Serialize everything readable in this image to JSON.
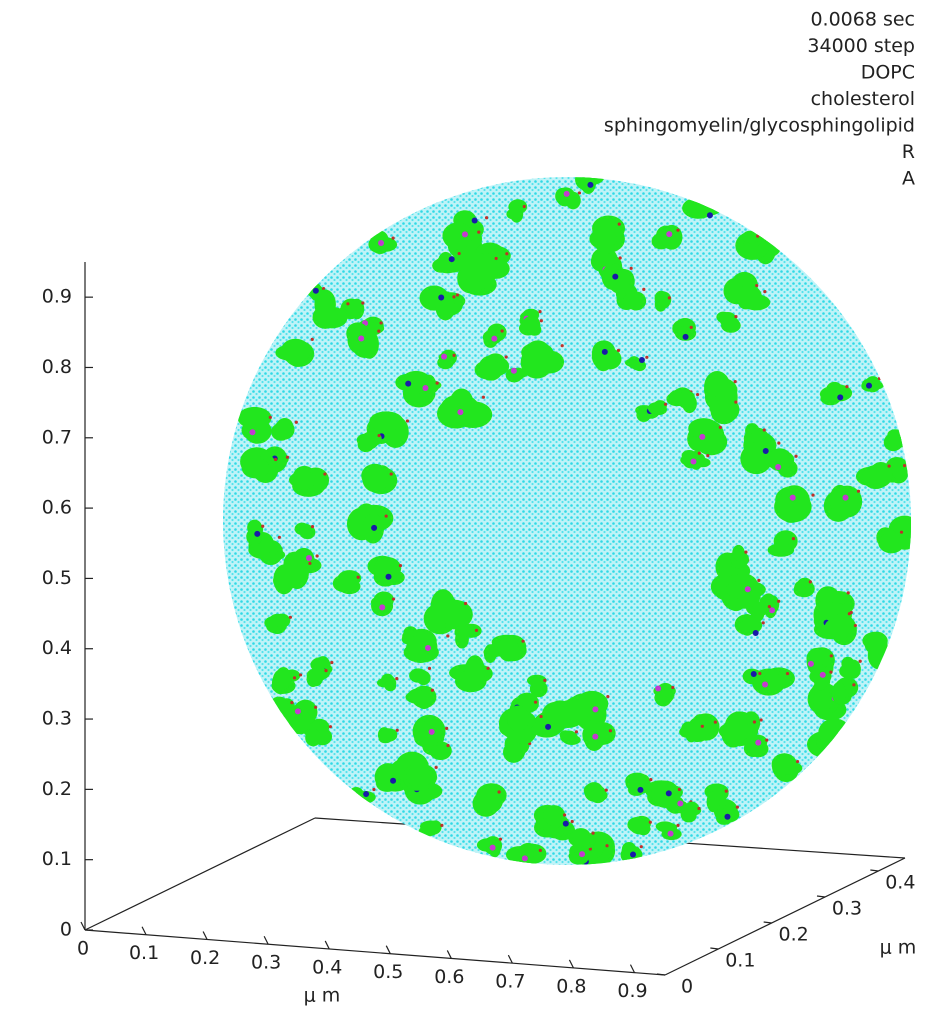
{
  "chart_data": {
    "type": "scatter3d",
    "legend": [
      "0.0068 sec",
      "34000 step",
      "DOPC",
      "cholesterol",
      "sphingomyelin/glycosphingolipid",
      "R",
      "A"
    ],
    "xlabel": "μ m",
    "ylabel": "μ m",
    "xlim": [
      0,
      0.95
    ],
    "xticks": [
      0,
      0.1,
      0.2,
      0.3,
      0.4,
      0.5,
      0.6,
      0.7,
      0.8,
      0.9
    ],
    "ylim": [
      0,
      0.45
    ],
    "yticks": [
      0,
      0.1,
      0.2,
      0.3,
      0.4
    ],
    "zlim": [
      0,
      0.95
    ],
    "zticks": [
      0,
      0.1,
      0.2,
      0.3,
      0.4,
      0.5,
      0.6,
      0.7,
      0.8,
      0.9
    ]
  }
}
